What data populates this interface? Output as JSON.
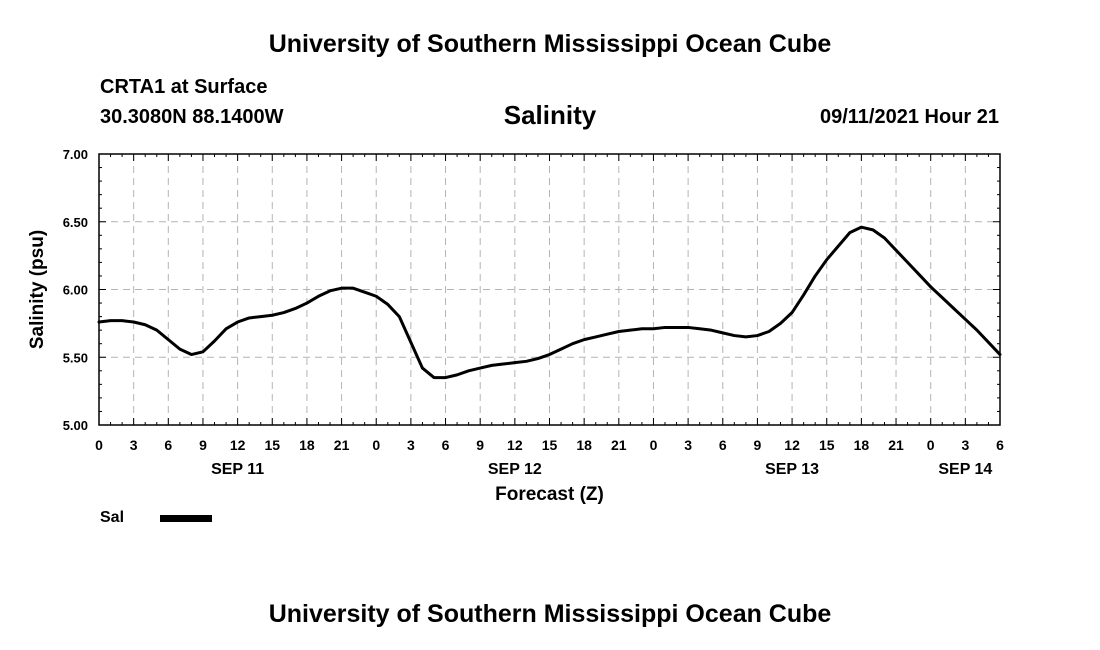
{
  "header": {
    "institution_top": "University of Southern Mississippi Ocean Cube",
    "station": "CRTA1 at Surface",
    "coords": "30.3080N  88.1400W",
    "variable": "Salinity",
    "datetime": "09/11/2021 Hour 21"
  },
  "footer": {
    "institution_bottom": "University of Southern Mississippi Ocean Cube"
  },
  "chart_data": {
    "type": "line",
    "title": "Salinity",
    "xlabel": "Forecast (Z)",
    "ylabel": "Salinity (psu)",
    "ylim": [
      5.0,
      7.0
    ],
    "yticks": [
      "5.00",
      "5.50",
      "6.00",
      "6.50",
      "7.00"
    ],
    "xlim_hours": [
      0,
      78
    ],
    "xtick_step_hours": 3,
    "xtick_labels": [
      "0",
      "3",
      "6",
      "9",
      "12",
      "15",
      "18",
      "21",
      "0",
      "3",
      "6",
      "9",
      "12",
      "15",
      "18",
      "21",
      "0",
      "3",
      "6",
      "9",
      "12",
      "15",
      "18",
      "21",
      "0",
      "3",
      "6"
    ],
    "day_labels": [
      {
        "hour": 12,
        "label": "SEP 11"
      },
      {
        "hour": 36,
        "label": "SEP 12"
      },
      {
        "hour": 60,
        "label": "SEP 13"
      },
      {
        "hour": 75,
        "label": "SEP 14"
      }
    ],
    "grid": true,
    "series": [
      {
        "name": "Sal",
        "color": "#000000",
        "x": [
          0,
          1,
          2,
          3,
          4,
          5,
          6,
          7,
          8,
          9,
          10,
          11,
          12,
          13,
          14,
          15,
          16,
          17,
          18,
          19,
          20,
          21,
          22,
          23,
          24,
          25,
          26,
          27,
          28,
          29,
          30,
          31,
          32,
          33,
          34,
          35,
          36,
          37,
          38,
          39,
          40,
          41,
          42,
          43,
          44,
          45,
          46,
          47,
          48,
          49,
          50,
          51,
          52,
          53,
          54,
          55,
          56,
          57,
          58,
          59,
          60,
          61,
          62,
          63,
          64,
          65,
          66,
          67,
          68,
          69,
          70,
          71,
          72,
          73,
          74,
          75,
          76,
          77,
          78
        ],
        "values": [
          5.76,
          5.77,
          5.77,
          5.76,
          5.74,
          5.7,
          5.63,
          5.56,
          5.52,
          5.54,
          5.62,
          5.71,
          5.76,
          5.79,
          5.8,
          5.81,
          5.83,
          5.86,
          5.9,
          5.95,
          5.99,
          6.01,
          6.01,
          5.98,
          5.95,
          5.89,
          5.8,
          5.61,
          5.42,
          5.35,
          5.35,
          5.37,
          5.4,
          5.42,
          5.44,
          5.45,
          5.46,
          5.47,
          5.49,
          5.52,
          5.56,
          5.6,
          5.63,
          5.65,
          5.67,
          5.69,
          5.7,
          5.71,
          5.71,
          5.72,
          5.72,
          5.72,
          5.71,
          5.7,
          5.68,
          5.66,
          5.65,
          5.66,
          5.69,
          5.75,
          5.83,
          5.96,
          6.1,
          6.22,
          6.32,
          6.42,
          6.46,
          6.44,
          6.38,
          6.29,
          6.2,
          6.11,
          6.02,
          5.94,
          5.86,
          5.78,
          5.7,
          5.61,
          5.52
        ]
      }
    ],
    "legend": [
      {
        "name": "Sal",
        "position": "bottom-left"
      }
    ]
  }
}
